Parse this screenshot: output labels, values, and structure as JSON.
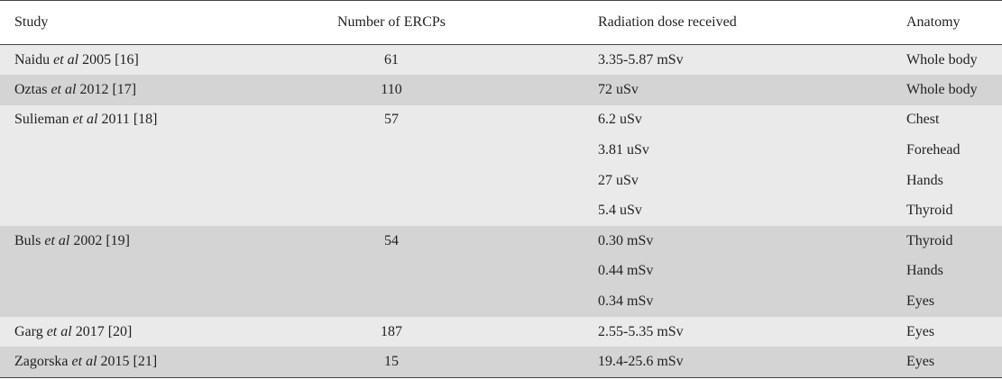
{
  "table": {
    "headers": {
      "study": "Study",
      "number": "Number of ERCPs",
      "dose": "Radiation dose received",
      "anatomy": "Anatomy"
    },
    "rows": [
      {
        "author": "Naidu",
        "etal": "et al",
        "year": "2005",
        "ref": "[16]",
        "ercps": "61",
        "entries": [
          {
            "dose": "3.35-5.87 mSv",
            "anatomy": "Whole body"
          }
        ]
      },
      {
        "author": "Oztas",
        "etal": "et al",
        "year": "2012",
        "ref": "[17]",
        "ercps": "110",
        "entries": [
          {
            "dose": "72 uSv",
            "anatomy": "Whole body"
          }
        ]
      },
      {
        "author": "Sulieman",
        "etal": "et al",
        "year": "2011",
        "ref": "[18]",
        "ercps": "57",
        "entries": [
          {
            "dose": "6.2 uSv",
            "anatomy": "Chest"
          },
          {
            "dose": "3.81 uSv",
            "anatomy": "Forehead"
          },
          {
            "dose": "27 uSv",
            "anatomy": "Hands"
          },
          {
            "dose": "5.4 uSv",
            "anatomy": "Thyroid"
          }
        ]
      },
      {
        "author": "Buls",
        "etal": "et al",
        "year": "2002",
        "ref": "[19]",
        "ercps": "54",
        "entries": [
          {
            "dose": "0.30 mSv",
            "anatomy": "Thyroid"
          },
          {
            "dose": "0.44 mSv",
            "anatomy": "Hands"
          },
          {
            "dose": "0.34 mSv",
            "anatomy": "Eyes"
          }
        ]
      },
      {
        "author": "Garg",
        "etal": "et al",
        "year": "2017",
        "ref": "[20]",
        "ercps": "187",
        "entries": [
          {
            "dose": "2.55-5.35 mSv",
            "anatomy": "Eyes"
          }
        ]
      },
      {
        "author": "Zagorska",
        "etal": "et al",
        "year": "2015",
        "ref": "[21]",
        "ercps": "15",
        "entries": [
          {
            "dose": "19.4-25.6 mSv",
            "anatomy": "Eyes"
          }
        ]
      }
    ]
  }
}
